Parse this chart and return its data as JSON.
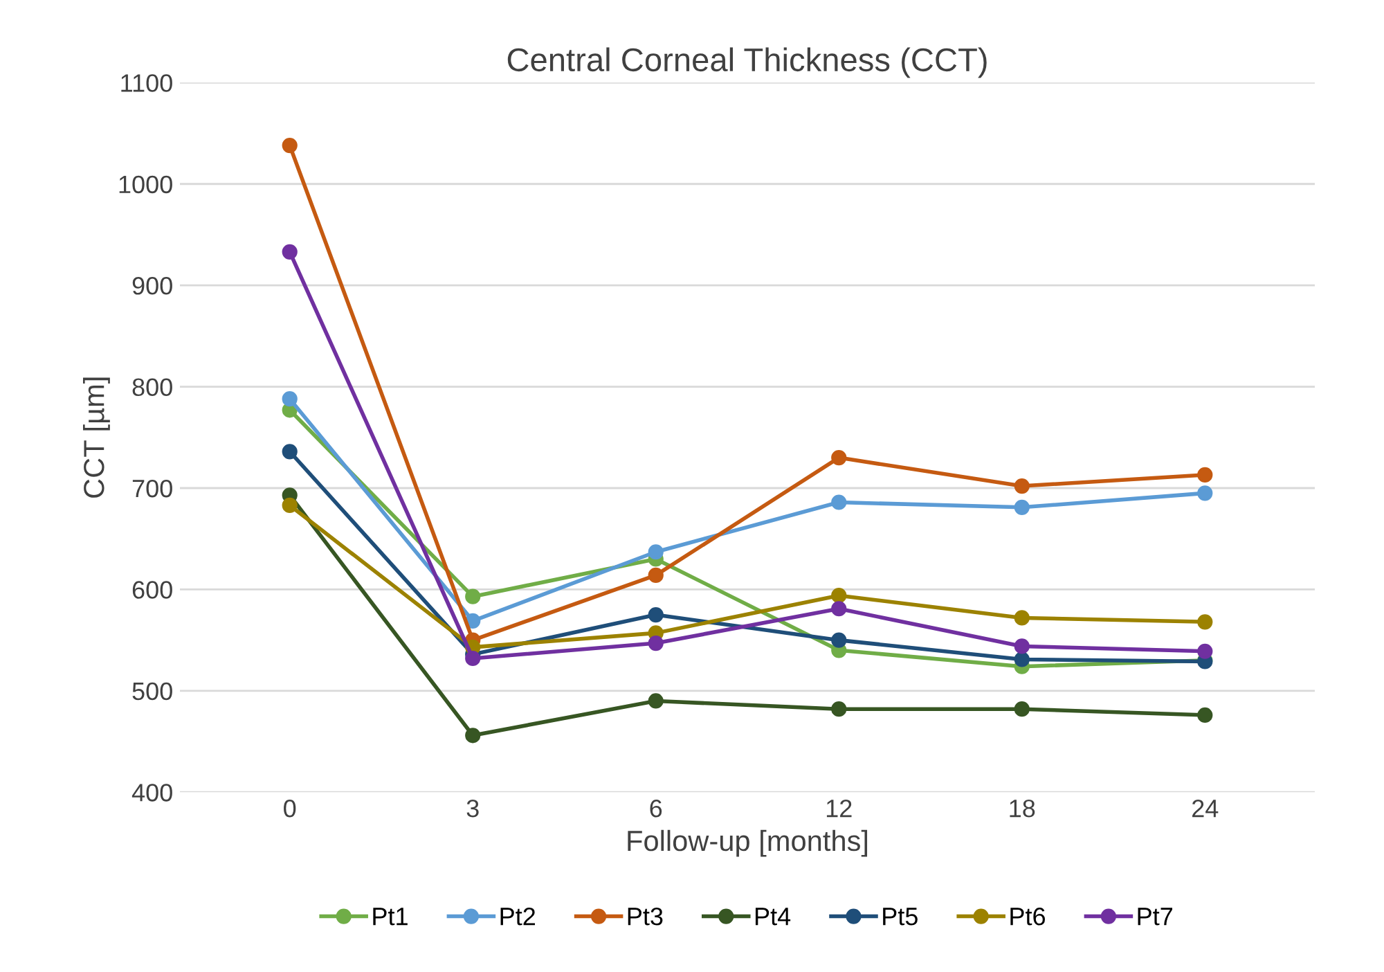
{
  "chart_data": {
    "type": "line",
    "title": "Central Corneal Thickness (CCT)",
    "xlabel": "Follow-up [months]",
    "ylabel": "CCT [µm]",
    "categories": [
      "0",
      "3",
      "6",
      "12",
      "18",
      "24"
    ],
    "ylim": [
      400,
      1100
    ],
    "yticks": [
      400,
      500,
      600,
      700,
      800,
      900,
      1000,
      1100
    ],
    "grid": "y",
    "legend": "bottom",
    "marker": "circle",
    "line_style": "solid",
    "series": [
      {
        "name": "Pt1",
        "color": "#70ad47",
        "values": [
          777,
          593,
          630,
          540,
          524,
          530
        ]
      },
      {
        "name": "Pt2",
        "color": "#5b9bd5",
        "values": [
          788,
          569,
          637,
          686,
          681,
          695
        ]
      },
      {
        "name": "Pt3",
        "color": "#c55a11",
        "values": [
          1038,
          550,
          614,
          730,
          702,
          713
        ]
      },
      {
        "name": "Pt4",
        "color": "#375623",
        "values": [
          693,
          456,
          490,
          482,
          482,
          476
        ]
      },
      {
        "name": "Pt5",
        "color": "#1f4e79",
        "values": [
          736,
          536,
          575,
          550,
          531,
          529
        ]
      },
      {
        "name": "Pt6",
        "color": "#9c8200",
        "values": [
          683,
          543,
          557,
          594,
          572,
          568
        ]
      },
      {
        "name": "Pt7",
        "color": "#7030a0",
        "values": [
          933,
          532,
          547,
          581,
          544,
          539
        ]
      }
    ]
  }
}
